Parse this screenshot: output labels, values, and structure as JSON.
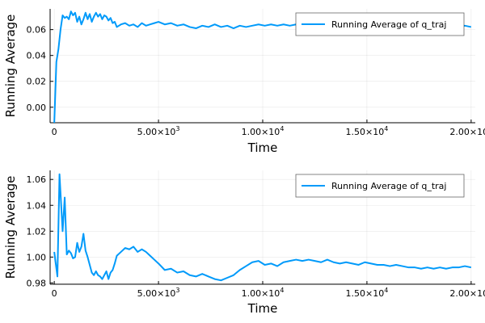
{
  "chart_data": [
    {
      "type": "line",
      "xlabel": "Time",
      "ylabel": "Running Average",
      "xlim": [
        -200,
        20200
      ],
      "ylim": [
        -0.012,
        0.076
      ],
      "x_ticks": [
        0,
        5000,
        10000,
        15000,
        20000
      ],
      "x_tick_labels": [
        {
          "mantissa": "0",
          "exponent": ""
        },
        {
          "mantissa": "5.00×10",
          "exponent": "3"
        },
        {
          "mantissa": "1.00×10",
          "exponent": "4"
        },
        {
          "mantissa": "1.50×10",
          "exponent": "4"
        },
        {
          "mantissa": "2.00×10",
          "exponent": "4"
        }
      ],
      "y_ticks": [
        0.0,
        0.02,
        0.04,
        0.06
      ],
      "y_tick_labels": [
        "0.00",
        "0.02",
        "0.04",
        "0.06"
      ],
      "grid": true,
      "legend_position": "top-right",
      "color": "#009AFA",
      "series": [
        {
          "name": "Running Average of q_traj",
          "x": [
            0,
            100,
            200,
            300,
            400,
            500,
            600,
            700,
            800,
            900,
            1000,
            1100,
            1200,
            1300,
            1400,
            1500,
            1600,
            1700,
            1800,
            1900,
            2000,
            2100,
            2200,
            2300,
            2400,
            2500,
            2600,
            2700,
            2800,
            2900,
            3000,
            3200,
            3400,
            3600,
            3800,
            4000,
            4200,
            4400,
            4600,
            4800,
            5000,
            5300,
            5600,
            5900,
            6200,
            6500,
            6800,
            7100,
            7400,
            7700,
            8000,
            8300,
            8600,
            8900,
            9200,
            9500,
            9800,
            10100,
            10400,
            10700,
            11000,
            11300,
            11600,
            11900,
            12200,
            12500,
            12800,
            13100,
            13400,
            13700,
            14000,
            14300,
            14600,
            14900,
            15200,
            15500,
            15800,
            16100,
            16400,
            16700,
            17000,
            17300,
            17600,
            17900,
            18200,
            18500,
            18800,
            19100,
            19400,
            19700,
            20000
          ],
          "y": [
            -0.012,
            0.035,
            0.045,
            0.06,
            0.071,
            0.069,
            0.07,
            0.068,
            0.074,
            0.071,
            0.073,
            0.066,
            0.07,
            0.064,
            0.068,
            0.073,
            0.068,
            0.072,
            0.066,
            0.07,
            0.073,
            0.07,
            0.072,
            0.068,
            0.071,
            0.07,
            0.067,
            0.069,
            0.065,
            0.066,
            0.062,
            0.064,
            0.065,
            0.063,
            0.064,
            0.062,
            0.065,
            0.063,
            0.064,
            0.065,
            0.066,
            0.064,
            0.065,
            0.063,
            0.064,
            0.062,
            0.061,
            0.063,
            0.062,
            0.064,
            0.062,
            0.063,
            0.061,
            0.063,
            0.062,
            0.063,
            0.064,
            0.063,
            0.064,
            0.063,
            0.064,
            0.063,
            0.064,
            0.065,
            0.064,
            0.063,
            0.064,
            0.063,
            0.064,
            0.065,
            0.064,
            0.065,
            0.064,
            0.064,
            0.065,
            0.064,
            0.063,
            0.064,
            0.063,
            0.064,
            0.063,
            0.064,
            0.063,
            0.064,
            0.063,
            0.064,
            0.063,
            0.064,
            0.063,
            0.063,
            0.062
          ]
        }
      ]
    },
    {
      "type": "line",
      "xlabel": "Time",
      "ylabel": "Running Average",
      "xlim": [
        -200,
        20200
      ],
      "ylim": [
        0.979,
        1.067
      ],
      "x_ticks": [
        0,
        5000,
        10000,
        15000,
        20000
      ],
      "x_tick_labels": [
        {
          "mantissa": "0",
          "exponent": ""
        },
        {
          "mantissa": "5.00×10",
          "exponent": "3"
        },
        {
          "mantissa": "1.00×10",
          "exponent": "4"
        },
        {
          "mantissa": "1.50×10",
          "exponent": "4"
        },
        {
          "mantissa": "2.00×10",
          "exponent": "4"
        }
      ],
      "y_ticks": [
        0.98,
        1.0,
        1.02,
        1.04,
        1.06
      ],
      "y_tick_labels": [
        "0.98",
        "1.00",
        "1.02",
        "1.04",
        "1.06"
      ],
      "grid": true,
      "legend_position": "top-right",
      "color": "#009AFA",
      "series": [
        {
          "name": "Running Average of q_traj",
          "x": [
            0,
            150,
            250,
            400,
            500,
            600,
            700,
            800,
            900,
            1000,
            1100,
            1200,
            1300,
            1400,
            1500,
            1600,
            1700,
            1800,
            1900,
            2000,
            2100,
            2200,
            2300,
            2400,
            2500,
            2600,
            2700,
            2800,
            2900,
            3000,
            3200,
            3400,
            3600,
            3800,
            4000,
            4200,
            4400,
            4600,
            4800,
            5000,
            5300,
            5600,
            5900,
            6200,
            6500,
            6800,
            7100,
            7400,
            7700,
            8000,
            8300,
            8600,
            8900,
            9200,
            9500,
            9800,
            10100,
            10400,
            10700,
            11000,
            11300,
            11600,
            11900,
            12200,
            12500,
            12800,
            13100,
            13400,
            13700,
            14000,
            14300,
            14600,
            14900,
            15200,
            15500,
            15800,
            16100,
            16400,
            16700,
            17000,
            17300,
            17600,
            17900,
            18200,
            18500,
            18800,
            19100,
            19400,
            19700,
            20000
          ],
          "y": [
            1.004,
            0.985,
            1.064,
            1.02,
            1.046,
            1.002,
            1.005,
            1.003,
            0.999,
            1.0,
            1.011,
            1.004,
            1.008,
            1.018,
            1.005,
            1.0,
            0.994,
            0.988,
            0.986,
            0.989,
            0.986,
            0.985,
            0.983,
            0.986,
            0.989,
            0.983,
            0.988,
            0.99,
            0.995,
            1.001,
            1.004,
            1.007,
            1.006,
            1.008,
            1.004,
            1.006,
            1.004,
            1.001,
            0.998,
            0.995,
            0.99,
            0.991,
            0.988,
            0.989,
            0.986,
            0.985,
            0.987,
            0.985,
            0.983,
            0.982,
            0.984,
            0.986,
            0.99,
            0.993,
            0.996,
            0.997,
            0.994,
            0.995,
            0.993,
            0.996,
            0.997,
            0.998,
            0.997,
            0.998,
            0.997,
            0.996,
            0.998,
            0.996,
            0.995,
            0.996,
            0.995,
            0.994,
            0.996,
            0.995,
            0.994,
            0.994,
            0.993,
            0.994,
            0.993,
            0.992,
            0.992,
            0.991,
            0.992,
            0.991,
            0.992,
            0.991,
            0.992,
            0.992,
            0.993,
            0.992
          ]
        }
      ]
    }
  ]
}
